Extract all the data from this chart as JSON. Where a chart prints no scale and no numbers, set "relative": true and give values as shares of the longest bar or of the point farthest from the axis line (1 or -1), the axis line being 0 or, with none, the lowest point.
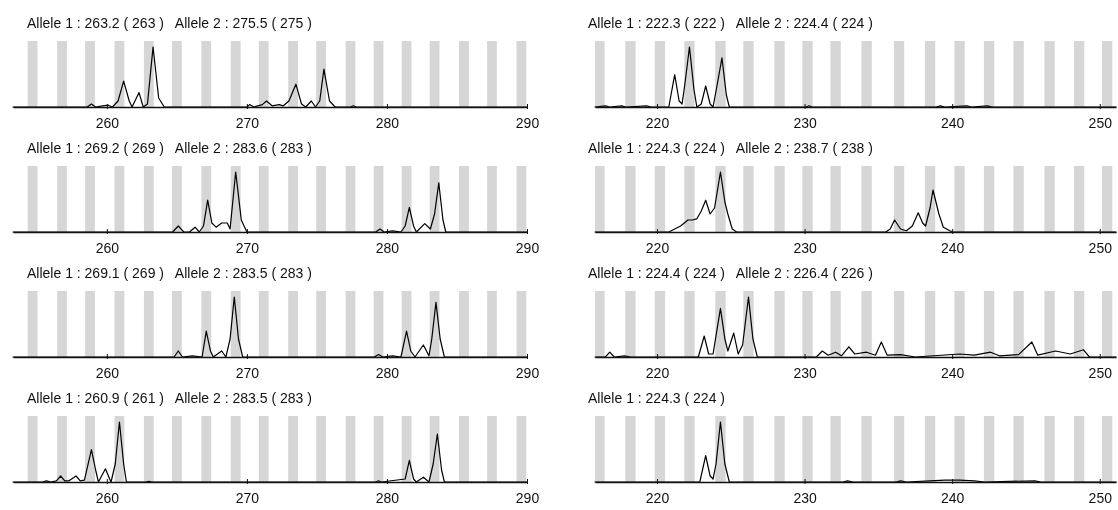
{
  "chart_data": [
    {
      "type": "line",
      "title": "Allele 1 : 263.2 ( 263 )   Allele 2 : 275.5 ( 275 )",
      "relative": true,
      "color": "#000000",
      "xlim": [
        253.3,
        290
      ],
      "xticks": [
        260,
        270,
        280,
        290
      ],
      "x": [
        253.3,
        258.6,
        258.9,
        259.2,
        259.7,
        260.1,
        260.4,
        260.8,
        261.2,
        261.6,
        261.8,
        262.3,
        262.6,
        262.9,
        263.3,
        263.7,
        264.1,
        270.0,
        270.2,
        270.5,
        271.1,
        271.4,
        271.8,
        272.3,
        272.6,
        273.0,
        273.5,
        273.9,
        274.2,
        274.6,
        274.9,
        275.2,
        275.5,
        275.9,
        276.3,
        277.4,
        277.6,
        277.8,
        290
      ],
      "values": [
        0,
        0,
        0.05,
        0,
        0.02,
        0.03,
        0,
        0.1,
        0.43,
        0.1,
        0,
        0.24,
        0,
        0.05,
        1,
        0.15,
        0,
        0,
        0.04,
        0,
        0.04,
        0.1,
        0.02,
        0.04,
        0.02,
        0.1,
        0.38,
        0.05,
        0,
        0.1,
        0,
        0.1,
        0.63,
        0.1,
        0,
        0,
        0.02,
        0,
        0
      ],
      "bands": [
        {
          "axis": "x",
          "from": 254.35,
          "to": 255.05
        },
        {
          "axis": "x",
          "from": 256.45,
          "to": 257.15
        },
        {
          "axis": "x",
          "from": 258.45,
          "to": 259.15
        },
        {
          "axis": "x",
          "from": 260.55,
          "to": 261.25
        },
        {
          "axis": "x",
          "from": 262.65,
          "to": 263.35
        },
        {
          "axis": "x",
          "from": 264.65,
          "to": 265.35
        },
        {
          "axis": "x",
          "from": 266.75,
          "to": 267.45
        },
        {
          "axis": "x",
          "from": 268.85,
          "to": 269.55
        },
        {
          "axis": "x",
          "from": 270.85,
          "to": 271.55
        },
        {
          "axis": "x",
          "from": 272.95,
          "to": 273.65
        },
        {
          "axis": "x",
          "from": 274.95,
          "to": 275.65
        },
        {
          "axis": "x",
          "from": 277.05,
          "to": 277.75
        },
        {
          "axis": "x",
          "from": 279.05,
          "to": 279.75
        },
        {
          "axis": "x",
          "from": 281.05,
          "to": 281.75
        },
        {
          "axis": "x",
          "from": 283.05,
          "to": 283.75
        },
        {
          "axis": "x",
          "from": 285.15,
          "to": 285.85
        },
        {
          "axis": "x",
          "from": 287.15,
          "to": 287.85
        },
        {
          "axis": "x",
          "from": 289.25,
          "to": 289.95
        }
      ]
    },
    {
      "type": "line",
      "title": "Allele 1 : 222.3 ( 222 )   Allele 2 : 224.4 ( 224 )",
      "relative": true,
      "color": "#000000",
      "xlim": [
        215.8,
        251.1
      ],
      "xticks": [
        220,
        230,
        240,
        250
      ],
      "x": [
        215.8,
        216.5,
        216.8,
        217.6,
        217.9,
        219.3,
        219.6,
        220.8,
        221.2,
        221.5,
        221.7,
        221.9,
        222.2,
        222.5,
        222.7,
        223.0,
        223.3,
        223.6,
        223.8,
        224.1,
        224.4,
        224.7,
        224.9,
        230.1,
        230.3,
        230.5,
        238.9,
        239.2,
        239.5,
        241.0,
        241.3,
        242.4,
        242.7,
        251.1
      ],
      "values": [
        0,
        0.02,
        0,
        0.02,
        0,
        0.02,
        0,
        0,
        0.54,
        0.1,
        0.05,
        0.4,
        1,
        0.3,
        0,
        0.05,
        0.35,
        0.05,
        0,
        0.4,
        0.82,
        0.2,
        0,
        0,
        0.02,
        0,
        0,
        0.02,
        0,
        0.02,
        0,
        0.02,
        0,
        0
      ],
      "bands": [
        {
          "axis": "x",
          "from": 215.8,
          "to": 216.45
        },
        {
          "axis": "x",
          "from": 217.85,
          "to": 218.55
        },
        {
          "axis": "x",
          "from": 219.85,
          "to": 220.55
        },
        {
          "axis": "x",
          "from": 221.85,
          "to": 222.55
        },
        {
          "axis": "x",
          "from": 223.95,
          "to": 224.65
        },
        {
          "axis": "x",
          "from": 225.85,
          "to": 226.55
        },
        {
          "axis": "x",
          "from": 227.95,
          "to": 228.65
        },
        {
          "axis": "x",
          "from": 229.85,
          "to": 230.55
        },
        {
          "axis": "x",
          "from": 231.75,
          "to": 232.45
        },
        {
          "axis": "x",
          "from": 233.85,
          "to": 234.55
        },
        {
          "axis": "x",
          "from": 236.05,
          "to": 236.75
        },
        {
          "axis": "x",
          "from": 238.15,
          "to": 238.85
        },
        {
          "axis": "x",
          "from": 240.15,
          "to": 240.85
        },
        {
          "axis": "x",
          "from": 242.15,
          "to": 242.85
        },
        {
          "axis": "x",
          "from": 244.15,
          "to": 244.85
        },
        {
          "axis": "x",
          "from": 246.25,
          "to": 246.95
        },
        {
          "axis": "x",
          "from": 248.25,
          "to": 248.95
        },
        {
          "axis": "x",
          "from": 250.15,
          "to": 250.85
        }
      ]
    },
    {
      "type": "line",
      "title": "Allele 1 : 269.2 ( 269 )   Allele 2 : 283.6 ( 283 )",
      "relative": true,
      "color": "#000000",
      "xlim": [
        253.3,
        290
      ],
      "xticks": [
        260,
        270,
        280,
        290
      ],
      "x": [
        253.3,
        264.7,
        265.1,
        265.5,
        265.9,
        266.3,
        266.6,
        266.9,
        267.2,
        267.5,
        267.8,
        268.2,
        268.6,
        268.8,
        269.2,
        269.6,
        270.0,
        279.2,
        279.5,
        279.8,
        280.4,
        281.0,
        281.3,
        281.6,
        281.9,
        282.1,
        282.7,
        283.1,
        283.4,
        283.7,
        284.0,
        284.2,
        290
      ],
      "values": [
        0,
        0,
        0.1,
        0,
        0,
        0.08,
        0,
        0.1,
        0.53,
        0.15,
        0.08,
        0.15,
        0.15,
        0.05,
        1,
        0.2,
        0,
        0,
        0.05,
        0,
        0.02,
        0,
        0.1,
        0.41,
        0.1,
        0,
        0.14,
        0.05,
        0.3,
        0.82,
        0.2,
        0,
        0
      ],
      "bands": [
        {
          "axis": "x",
          "from": 254.35,
          "to": 255.05
        },
        {
          "axis": "x",
          "from": 256.45,
          "to": 257.15
        },
        {
          "axis": "x",
          "from": 258.45,
          "to": 259.15
        },
        {
          "axis": "x",
          "from": 260.55,
          "to": 261.25
        },
        {
          "axis": "x",
          "from": 262.65,
          "to": 263.35
        },
        {
          "axis": "x",
          "from": 264.65,
          "to": 265.35
        },
        {
          "axis": "x",
          "from": 266.75,
          "to": 267.45
        },
        {
          "axis": "x",
          "from": 268.85,
          "to": 269.55
        },
        {
          "axis": "x",
          "from": 270.85,
          "to": 271.55
        },
        {
          "axis": "x",
          "from": 272.95,
          "to": 273.65
        },
        {
          "axis": "x",
          "from": 274.95,
          "to": 275.65
        },
        {
          "axis": "x",
          "from": 277.05,
          "to": 277.75
        },
        {
          "axis": "x",
          "from": 279.05,
          "to": 279.75
        },
        {
          "axis": "x",
          "from": 281.05,
          "to": 281.75
        },
        {
          "axis": "x",
          "from": 283.05,
          "to": 283.75
        },
        {
          "axis": "x",
          "from": 285.15,
          "to": 285.85
        },
        {
          "axis": "x",
          "from": 287.15,
          "to": 287.85
        },
        {
          "axis": "x",
          "from": 289.25,
          "to": 289.95
        }
      ]
    },
    {
      "type": "line",
      "title": "Allele 1 : 224.3 ( 224 )   Allele 2 : 238.7 ( 238 )",
      "relative": true,
      "color": "#000000",
      "xlim": [
        215.8,
        251.1
      ],
      "xticks": [
        220,
        230,
        240,
        250
      ],
      "x": [
        215.8,
        220.8,
        221.2,
        221.6,
        222.1,
        222.4,
        222.7,
        223.0,
        223.3,
        223.6,
        223.9,
        224.3,
        224.6,
        224.8,
        225.1,
        225.4,
        235.5,
        235.8,
        236.1,
        236.5,
        236.9,
        237.3,
        237.7,
        238.0,
        238.2,
        238.5,
        238.7,
        239.1,
        239.4,
        240.0,
        251.1
      ],
      "values": [
        0,
        0,
        0.05,
        0.1,
        0.2,
        0.2,
        0.22,
        0.35,
        0.53,
        0.3,
        0.4,
        1,
        0.5,
        0.3,
        0.05,
        0,
        0,
        0.05,
        0.2,
        0.05,
        0.02,
        0.1,
        0.32,
        0.15,
        0.1,
        0.4,
        0.7,
        0.3,
        0.08,
        0,
        0
      ],
      "bands": [
        {
          "axis": "x",
          "from": 215.8,
          "to": 216.45
        },
        {
          "axis": "x",
          "from": 217.85,
          "to": 218.55
        },
        {
          "axis": "x",
          "from": 219.85,
          "to": 220.55
        },
        {
          "axis": "x",
          "from": 221.85,
          "to": 222.55
        },
        {
          "axis": "x",
          "from": 223.95,
          "to": 224.65
        },
        {
          "axis": "x",
          "from": 225.85,
          "to": 226.55
        },
        {
          "axis": "x",
          "from": 227.95,
          "to": 228.65
        },
        {
          "axis": "x",
          "from": 229.85,
          "to": 230.55
        },
        {
          "axis": "x",
          "from": 231.75,
          "to": 232.45
        },
        {
          "axis": "x",
          "from": 233.85,
          "to": 234.55
        },
        {
          "axis": "x",
          "from": 236.05,
          "to": 236.75
        },
        {
          "axis": "x",
          "from": 238.15,
          "to": 238.85
        },
        {
          "axis": "x",
          "from": 240.15,
          "to": 240.85
        },
        {
          "axis": "x",
          "from": 242.15,
          "to": 242.85
        },
        {
          "axis": "x",
          "from": 244.15,
          "to": 244.85
        },
        {
          "axis": "x",
          "from": 246.25,
          "to": 246.95
        },
        {
          "axis": "x",
          "from": 248.25,
          "to": 248.95
        },
        {
          "axis": "x",
          "from": 250.15,
          "to": 250.85
        }
      ]
    },
    {
      "type": "line",
      "title": "Allele 1 : 269.1 ( 269 )   Allele 2 : 283.5 ( 283 )",
      "relative": true,
      "color": "#000000",
      "xlim": [
        253.3,
        290
      ],
      "xticks": [
        260,
        270,
        280,
        290
      ],
      "x": [
        253.3,
        264.8,
        265.1,
        265.4,
        266.1,
        266.8,
        267.1,
        267.4,
        267.6,
        268.2,
        268.5,
        268.8,
        269.1,
        269.4,
        269.7,
        279.1,
        279.4,
        279.7,
        280.4,
        281.0,
        281.4,
        281.7,
        282.0,
        282.6,
        283.0,
        283.2,
        283.5,
        283.8,
        284.1,
        290
      ],
      "values": [
        0,
        0,
        0.1,
        0,
        0.02,
        0,
        0.43,
        0.1,
        0,
        0.1,
        0,
        0.3,
        1,
        0.3,
        0,
        0,
        0.04,
        0,
        0.02,
        0,
        0.43,
        0.1,
        0,
        0.2,
        0.02,
        0.3,
        0.91,
        0.3,
        0,
        0
      ],
      "bands": [
        {
          "axis": "x",
          "from": 254.35,
          "to": 255.05
        },
        {
          "axis": "x",
          "from": 256.45,
          "to": 257.15
        },
        {
          "axis": "x",
          "from": 258.45,
          "to": 259.15
        },
        {
          "axis": "x",
          "from": 260.55,
          "to": 261.25
        },
        {
          "axis": "x",
          "from": 262.65,
          "to": 263.35
        },
        {
          "axis": "x",
          "from": 264.65,
          "to": 265.35
        },
        {
          "axis": "x",
          "from": 266.75,
          "to": 267.45
        },
        {
          "axis": "x",
          "from": 268.85,
          "to": 269.55
        },
        {
          "axis": "x",
          "from": 270.85,
          "to": 271.55
        },
        {
          "axis": "x",
          "from": 272.95,
          "to": 273.65
        },
        {
          "axis": "x",
          "from": 274.95,
          "to": 275.65
        },
        {
          "axis": "x",
          "from": 277.05,
          "to": 277.75
        },
        {
          "axis": "x",
          "from": 279.05,
          "to": 279.75
        },
        {
          "axis": "x",
          "from": 281.05,
          "to": 281.75
        },
        {
          "axis": "x",
          "from": 283.05,
          "to": 283.75
        },
        {
          "axis": "x",
          "from": 285.15,
          "to": 285.85
        },
        {
          "axis": "x",
          "from": 287.15,
          "to": 287.85
        },
        {
          "axis": "x",
          "from": 289.25,
          "to": 289.95
        }
      ]
    },
    {
      "type": "line",
      "title": "Allele 1 : 224.4 ( 224 )   Allele 2 : 226.4 ( 226 )",
      "relative": true,
      "color": "#000000",
      "xlim": [
        215.8,
        251.1
      ],
      "xticks": [
        220,
        230,
        240,
        250
      ],
      "x": [
        215.8,
        216.5,
        216.8,
        217.1,
        217.8,
        218.2,
        222.8,
        223.2,
        223.5,
        223.8,
        224.3,
        224.6,
        224.8,
        225.2,
        225.5,
        225.8,
        226.2,
        226.5,
        226.8,
        230.8,
        231.2,
        231.6,
        232.1,
        232.5,
        233.0,
        233.4,
        234.2,
        234.8,
        235.2,
        235.6,
        236.5,
        237.5,
        240.5,
        241.5,
        242.6,
        243.2,
        244.5,
        245.4,
        245.8,
        247.0,
        248.0,
        248.9,
        249.3,
        251.1
      ],
      "values": [
        0,
        0,
        0.08,
        0,
        0.02,
        0,
        0,
        0.35,
        0.05,
        0.05,
        0.81,
        0.3,
        0.1,
        0.4,
        0.05,
        0.2,
        1,
        0.3,
        0,
        0,
        0.1,
        0.03,
        0.08,
        0.02,
        0.17,
        0.05,
        0.08,
        0.03,
        0.25,
        0.03,
        0.04,
        0,
        0.05,
        0.03,
        0.08,
        0.02,
        0.04,
        0.25,
        0.03,
        0.1,
        0.05,
        0.12,
        0,
        0
      ],
      "bands": [
        {
          "axis": "x",
          "from": 215.8,
          "to": 216.45
        },
        {
          "axis": "x",
          "from": 217.85,
          "to": 218.55
        },
        {
          "axis": "x",
          "from": 219.85,
          "to": 220.55
        },
        {
          "axis": "x",
          "from": 221.85,
          "to": 222.55
        },
        {
          "axis": "x",
          "from": 223.95,
          "to": 224.65
        },
        {
          "axis": "x",
          "from": 225.85,
          "to": 226.55
        },
        {
          "axis": "x",
          "from": 227.95,
          "to": 228.65
        },
        {
          "axis": "x",
          "from": 229.85,
          "to": 230.55
        },
        {
          "axis": "x",
          "from": 231.75,
          "to": 232.45
        },
        {
          "axis": "x",
          "from": 233.85,
          "to": 234.55
        },
        {
          "axis": "x",
          "from": 236.05,
          "to": 236.75
        },
        {
          "axis": "x",
          "from": 238.15,
          "to": 238.85
        },
        {
          "axis": "x",
          "from": 240.15,
          "to": 240.85
        },
        {
          "axis": "x",
          "from": 242.15,
          "to": 242.85
        },
        {
          "axis": "x",
          "from": 244.15,
          "to": 244.85
        },
        {
          "axis": "x",
          "from": 246.25,
          "to": 246.95
        },
        {
          "axis": "x",
          "from": 248.25,
          "to": 248.95
        },
        {
          "axis": "x",
          "from": 250.15,
          "to": 250.85
        }
      ]
    },
    {
      "type": "line",
      "title": "Allele 1 : 260.9 ( 261 )   Allele 2 : 283.5 ( 283 )",
      "relative": true,
      "color": "#000000",
      "xlim": [
        253.3,
        290
      ],
      "xticks": [
        260,
        270,
        280,
        290
      ],
      "x": [
        253.3,
        255.4,
        255.7,
        256.0,
        256.4,
        256.7,
        257.0,
        257.3,
        257.8,
        258.1,
        258.4,
        258.9,
        259.2,
        259.4,
        259.9,
        260.2,
        260.3,
        260.6,
        260.9,
        261.2,
        261.4,
        262.8,
        263.0,
        263.2,
        279.2,
        279.4,
        279.6,
        281.3,
        281.6,
        281.9,
        282.1,
        282.6,
        283.0,
        283.3,
        283.6,
        283.9,
        284.1,
        290
      ],
      "values": [
        0,
        0,
        0.02,
        0,
        0.02,
        0.1,
        0.02,
        0.02,
        0.1,
        0.02,
        0.03,
        0.54,
        0.2,
        0,
        0.22,
        0.05,
        0,
        0.3,
        1,
        0.3,
        0,
        0,
        0.01,
        0,
        0,
        0.02,
        0,
        0.05,
        0.36,
        0.05,
        0,
        0.08,
        0,
        0.3,
        0.8,
        0.2,
        0,
        0
      ],
      "bands": [
        {
          "axis": "x",
          "from": 254.35,
          "to": 255.05
        },
        {
          "axis": "x",
          "from": 256.45,
          "to": 257.15
        },
        {
          "axis": "x",
          "from": 258.45,
          "to": 259.15
        },
        {
          "axis": "x",
          "from": 260.55,
          "to": 261.25
        },
        {
          "axis": "x",
          "from": 262.65,
          "to": 263.35
        },
        {
          "axis": "x",
          "from": 264.65,
          "to": 265.35
        },
        {
          "axis": "x",
          "from": 266.75,
          "to": 267.45
        },
        {
          "axis": "x",
          "from": 268.85,
          "to": 269.55
        },
        {
          "axis": "x",
          "from": 270.85,
          "to": 271.55
        },
        {
          "axis": "x",
          "from": 272.95,
          "to": 273.65
        },
        {
          "axis": "x",
          "from": 274.95,
          "to": 275.65
        },
        {
          "axis": "x",
          "from": 277.05,
          "to": 277.75
        },
        {
          "axis": "x",
          "from": 279.05,
          "to": 279.75
        },
        {
          "axis": "x",
          "from": 281.05,
          "to": 281.75
        },
        {
          "axis": "x",
          "from": 283.05,
          "to": 283.75
        },
        {
          "axis": "x",
          "from": 285.15,
          "to": 285.85
        },
        {
          "axis": "x",
          "from": 287.15,
          "to": 287.85
        },
        {
          "axis": "x",
          "from": 289.25,
          "to": 289.95
        }
      ]
    },
    {
      "type": "line",
      "title": "Allele 1 : 224.3 ( 224 )",
      "relative": true,
      "color": "#000000",
      "xlim": [
        215.8,
        251.1
      ],
      "xticks": [
        220,
        230,
        240,
        250
      ],
      "x": [
        215.8,
        222.0,
        222.9,
        223.3,
        223.6,
        223.8,
        224.0,
        224.3,
        224.6,
        224.9,
        232.6,
        232.9,
        233.3,
        236.2,
        236.5,
        236.9,
        238.5,
        239.5,
        240.5,
        241.5,
        242.2,
        245.6,
        246.0,
        251.1
      ],
      "values": [
        0,
        0,
        0,
        0.44,
        0.1,
        0.05,
        0.3,
        1,
        0.3,
        0,
        0,
        0.02,
        0,
        0,
        0.02,
        0,
        0.02,
        0.03,
        0.03,
        0.02,
        0,
        0.02,
        0,
        0
      ],
      "bands": [
        {
          "axis": "x",
          "from": 215.8,
          "to": 216.45
        },
        {
          "axis": "x",
          "from": 217.85,
          "to": 218.55
        },
        {
          "axis": "x",
          "from": 219.85,
          "to": 220.55
        },
        {
          "axis": "x",
          "from": 221.85,
          "to": 222.55
        },
        {
          "axis": "x",
          "from": 223.95,
          "to": 224.65
        },
        {
          "axis": "x",
          "from": 225.85,
          "to": 226.55
        },
        {
          "axis": "x",
          "from": 227.95,
          "to": 228.65
        },
        {
          "axis": "x",
          "from": 229.85,
          "to": 230.55
        },
        {
          "axis": "x",
          "from": 231.75,
          "to": 232.45
        },
        {
          "axis": "x",
          "from": 233.85,
          "to": 234.55
        },
        {
          "axis": "x",
          "from": 236.05,
          "to": 236.75
        },
        {
          "axis": "x",
          "from": 238.15,
          "to": 238.85
        },
        {
          "axis": "x",
          "from": 240.15,
          "to": 240.85
        },
        {
          "axis": "x",
          "from": 242.15,
          "to": 242.85
        },
        {
          "axis": "x",
          "from": 244.15,
          "to": 244.85
        },
        {
          "axis": "x",
          "from": 246.25,
          "to": 246.95
        },
        {
          "axis": "x",
          "from": 248.25,
          "to": 248.95
        },
        {
          "axis": "x",
          "from": 250.15,
          "to": 250.85
        }
      ]
    }
  ]
}
